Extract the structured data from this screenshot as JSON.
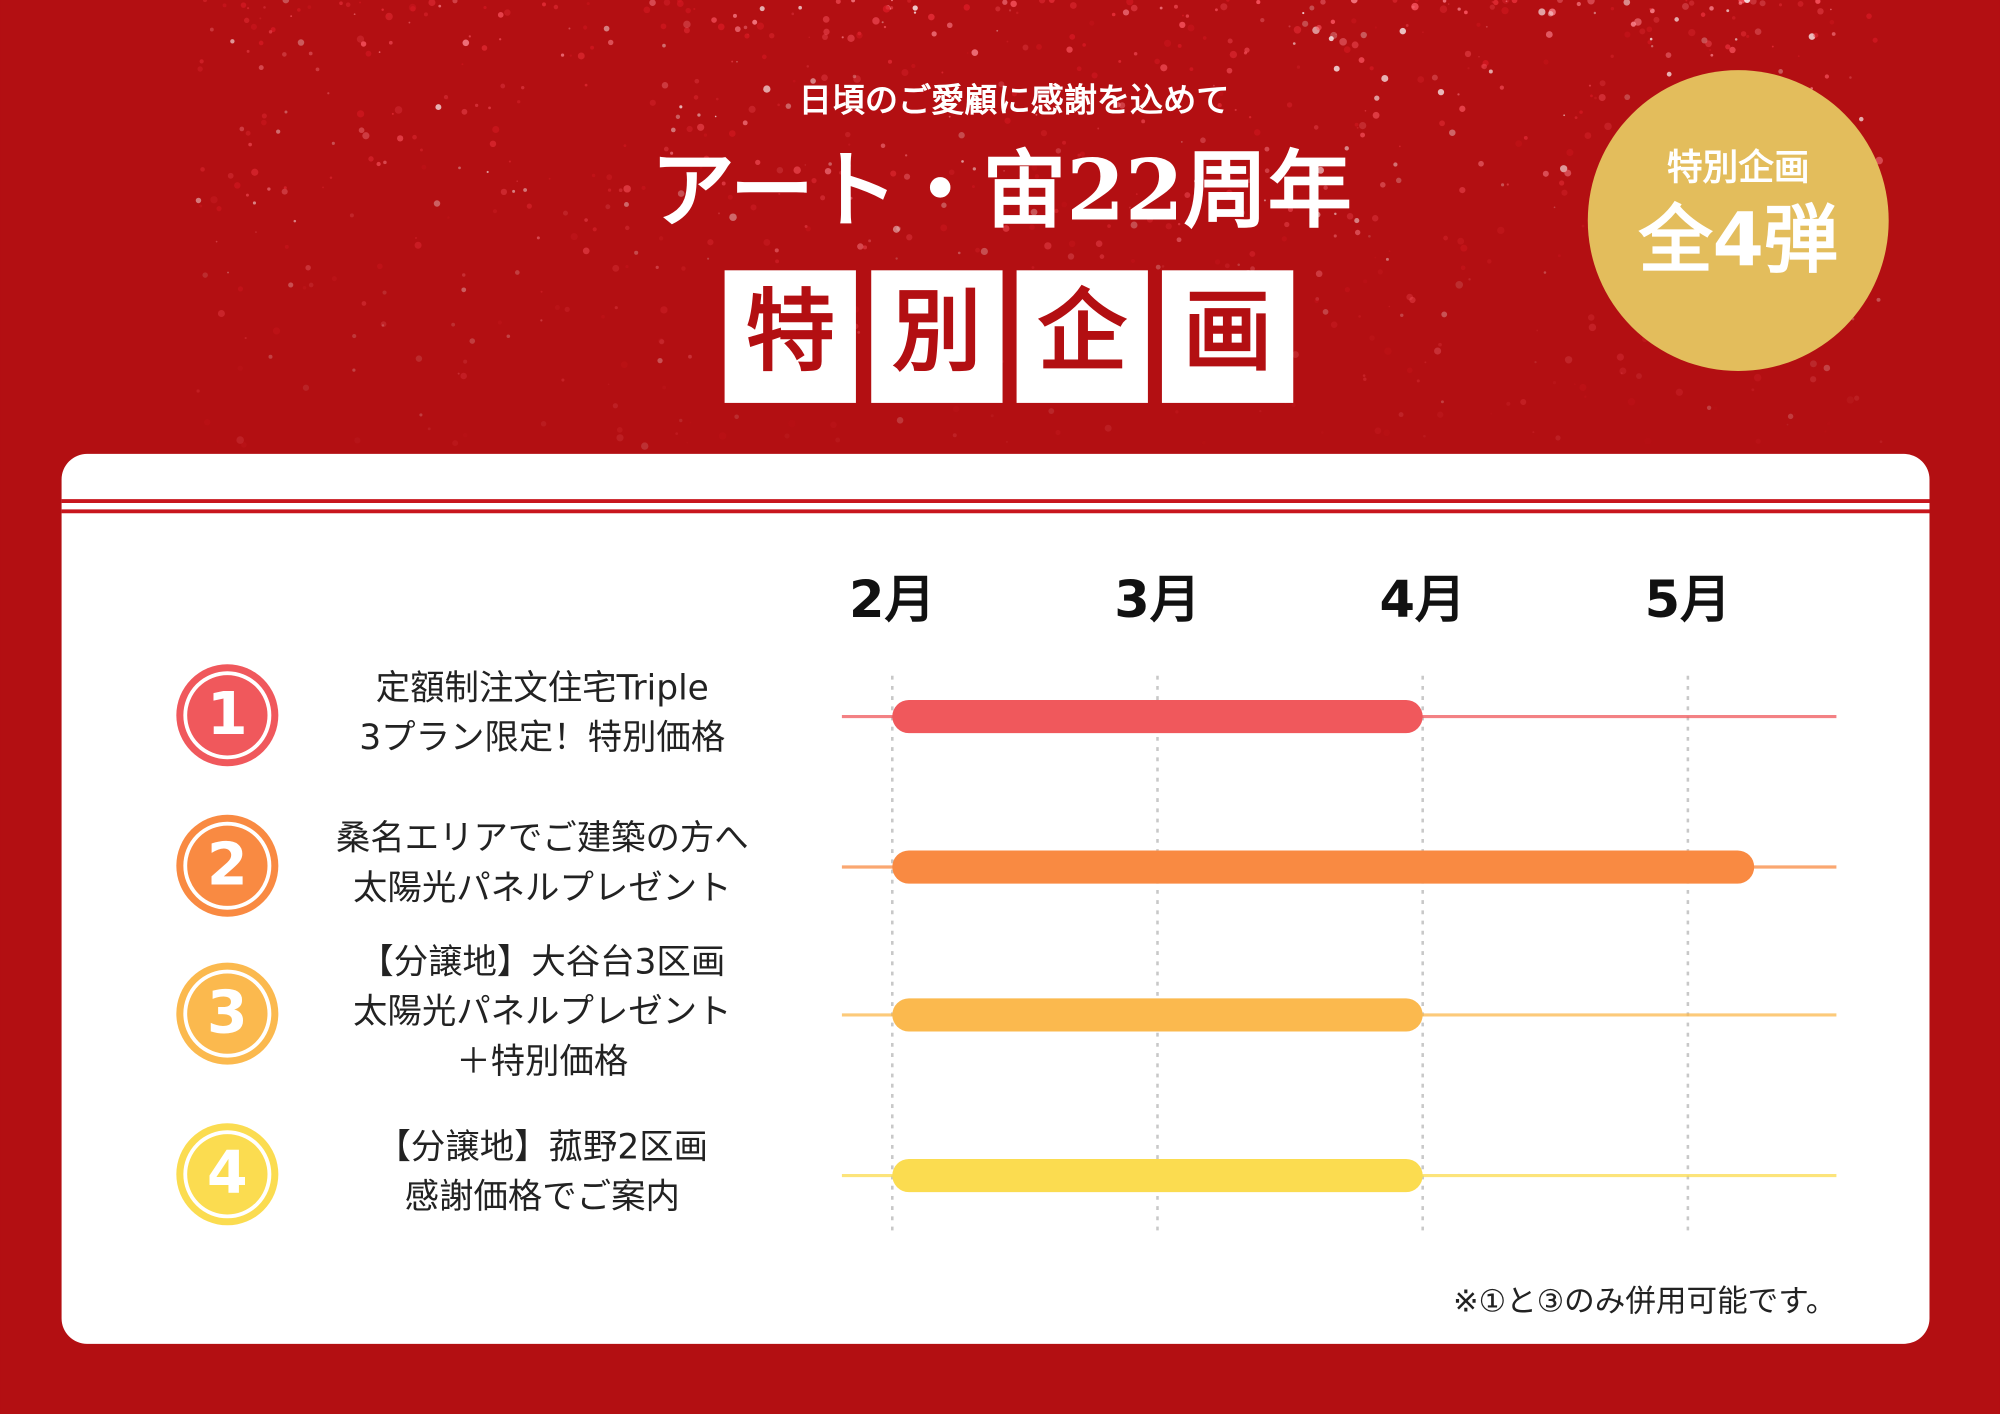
{
  "header": {
    "subtitle": "日頃のご愛顧に感謝を込めて",
    "title": "アート・宙22周年",
    "banner": [
      "特",
      "別",
      "企",
      "画"
    ],
    "badge": {
      "line1": "特別企画",
      "line2": "全4弾"
    }
  },
  "chart_data": {
    "type": "gantt",
    "xlim": [
      1.81,
      5.56
    ],
    "xticks": [
      {
        "value": 2,
        "label": "2月"
      },
      {
        "value": 3,
        "label": "3月"
      },
      {
        "value": 4,
        "label": "4月"
      },
      {
        "value": 5,
        "label": "5月"
      }
    ],
    "grid": true,
    "tasks": [
      {
        "number": "1",
        "lines": [
          "定額制注文住宅Triple",
          "3プラン限定！特別価格"
        ],
        "color": "#f0585c",
        "start": 2,
        "end": 4
      },
      {
        "number": "2",
        "lines": [
          "桑名エリアでご建築の方へ",
          "太陽光パネルプレゼント"
        ],
        "color": "#f98a42",
        "start": 2,
        "end": 5.25
      },
      {
        "number": "3",
        "lines": [
          "【分譲地】大谷台3区画",
          "太陽光パネルプレゼント",
          "＋特別価格"
        ],
        "color": "#fbb94e",
        "start": 2,
        "end": 4
      },
      {
        "number": "4",
        "lines": [
          "【分譲地】菰野2区画",
          "感謝価格でご案内"
        ],
        "color": "#fbdc50",
        "start": 2,
        "end": 4
      }
    ]
  },
  "note": "※①と③のみ併用可能です。"
}
